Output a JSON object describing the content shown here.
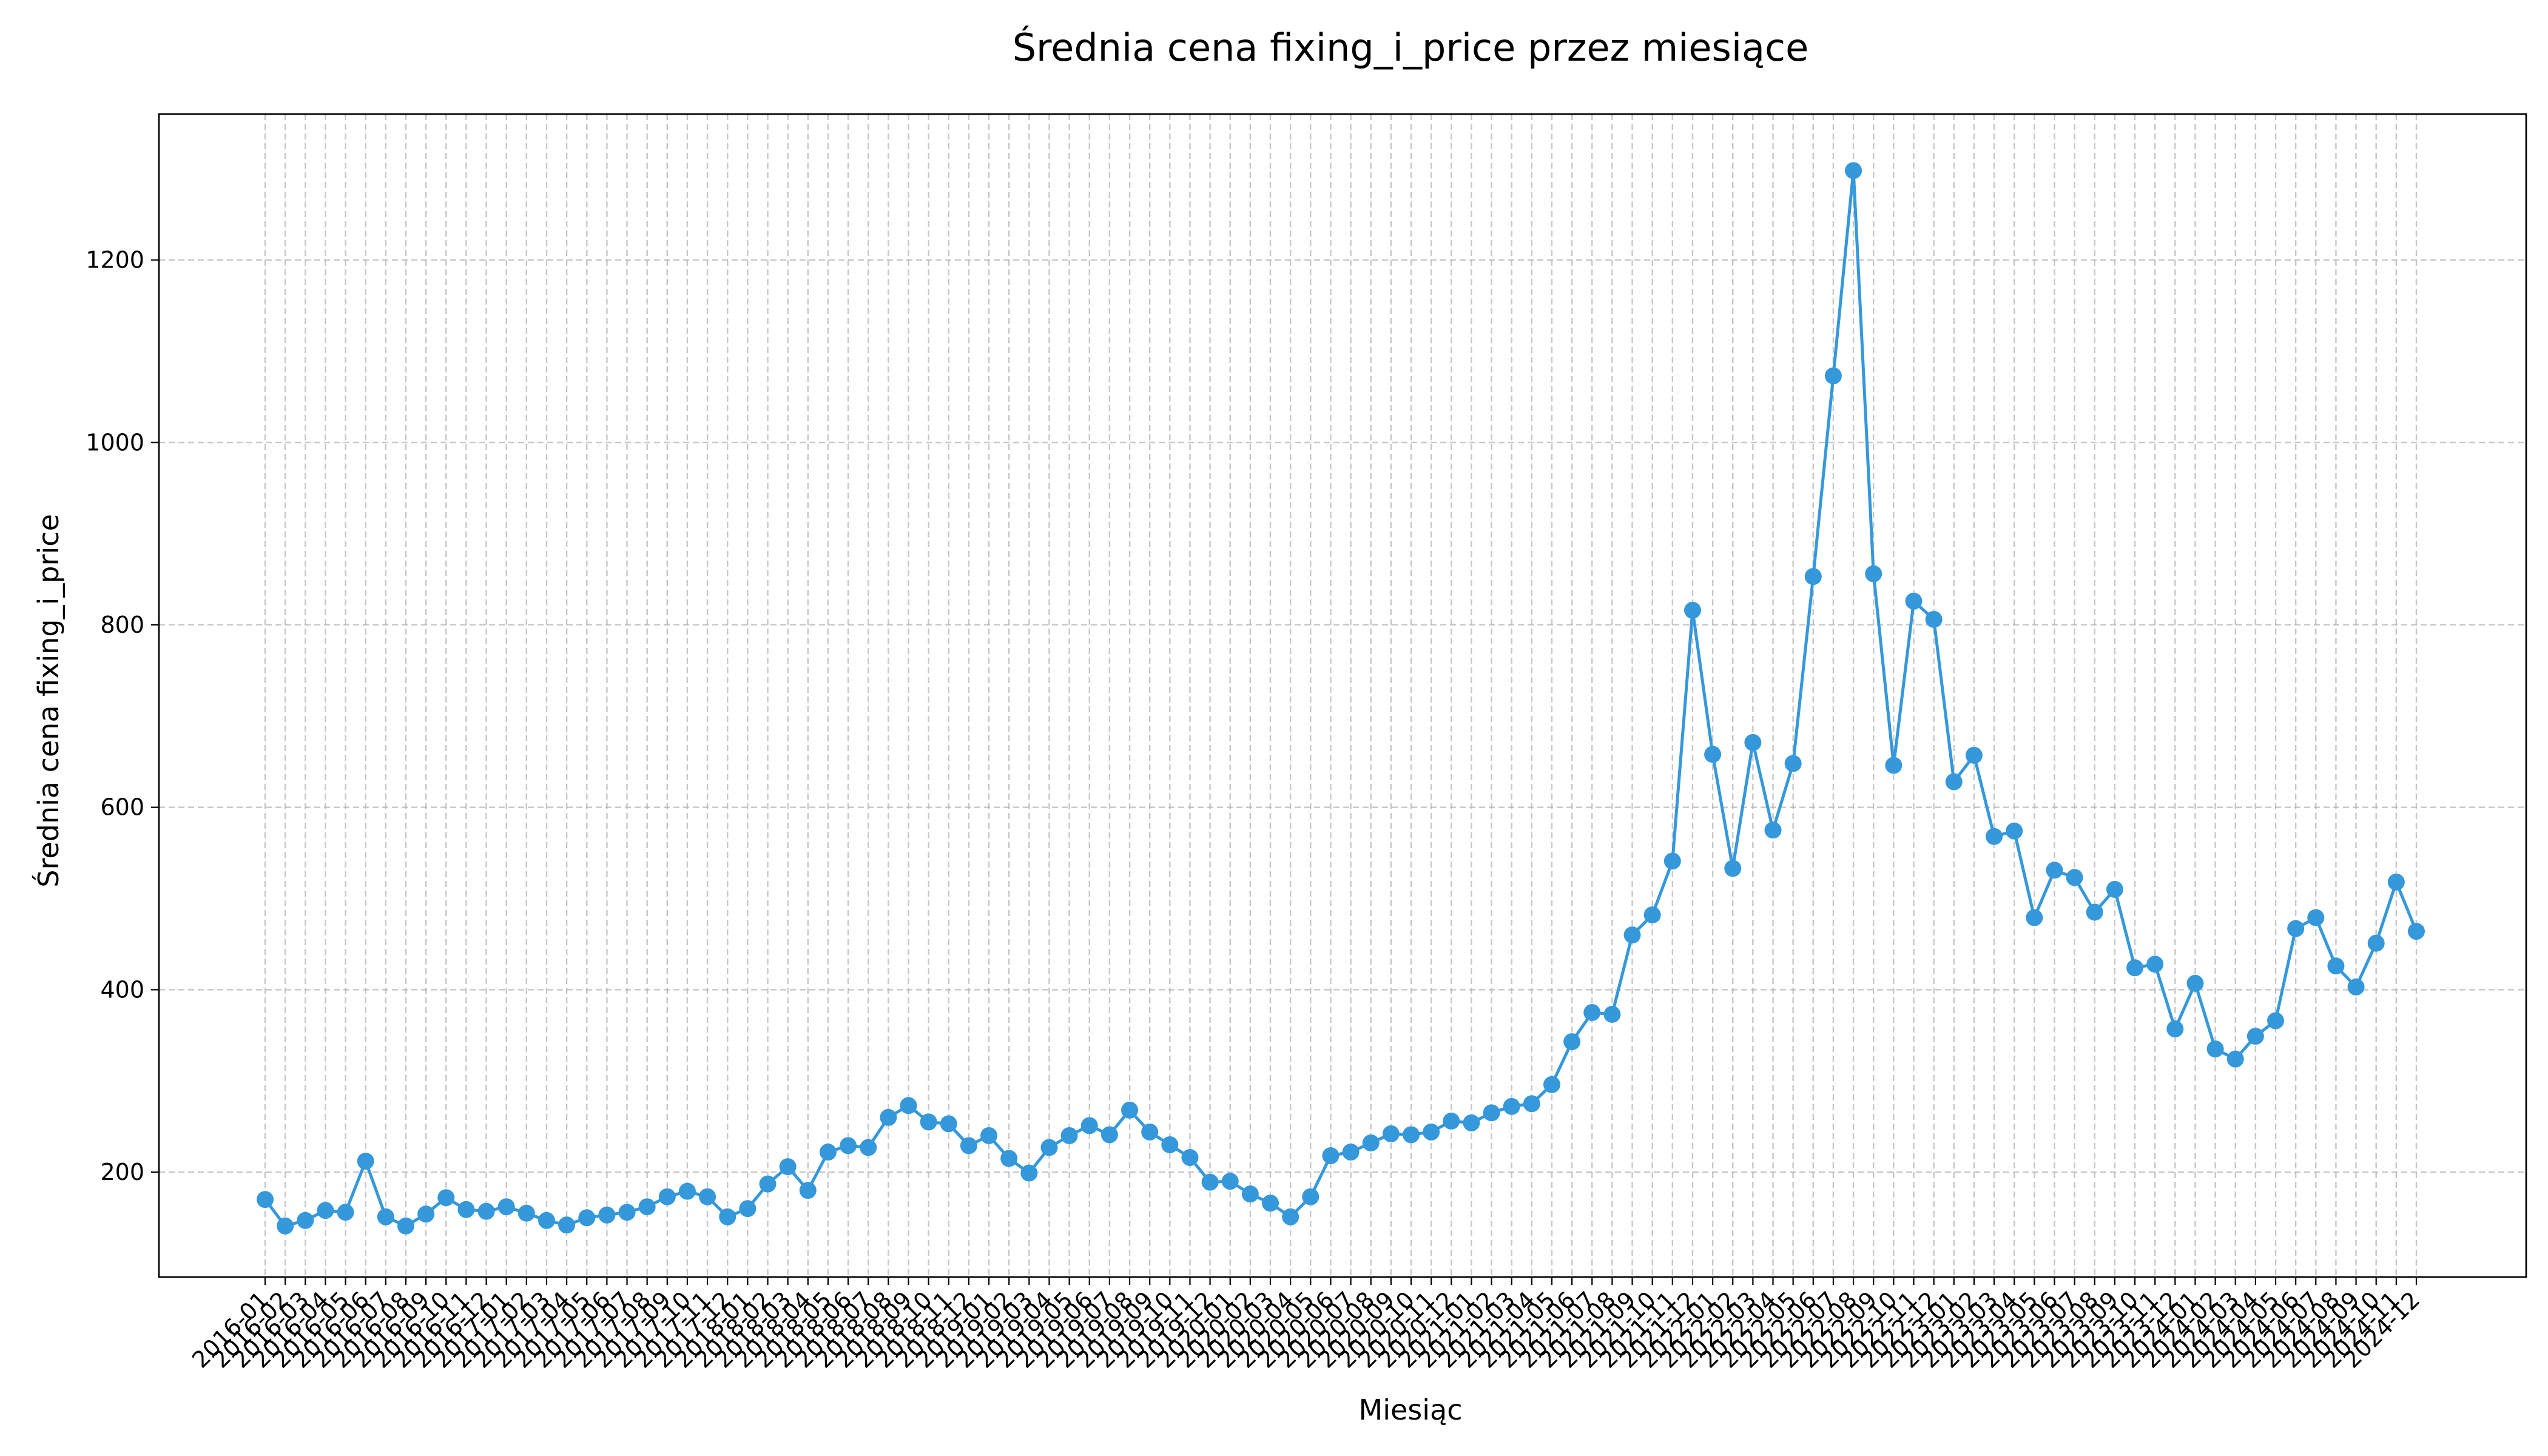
{
  "chart_data": {
    "type": "line",
    "title": "Średnia cena fixing_i_price przez miesiące",
    "xlabel": "Miesiąc",
    "ylabel": "Średnia cena fixing_i_price",
    "ylim": [
      85,
      1360
    ],
    "yticks": [
      200,
      400,
      600,
      800,
      1000,
      1200
    ],
    "grid": true,
    "legend": "none",
    "color": "#3498db",
    "x": [
      "2016-01",
      "2016-02",
      "2016-03",
      "2016-04",
      "2016-05",
      "2016-06",
      "2016-07",
      "2016-08",
      "2016-09",
      "2016-10",
      "2016-11",
      "2016-12",
      "2017-01",
      "2017-02",
      "2017-03",
      "2017-04",
      "2017-05",
      "2017-06",
      "2017-07",
      "2017-08",
      "2017-09",
      "2017-10",
      "2017-11",
      "2017-12",
      "2018-01",
      "2018-02",
      "2018-03",
      "2018-04",
      "2018-05",
      "2018-06",
      "2018-07",
      "2018-08",
      "2018-09",
      "2018-10",
      "2018-11",
      "2018-12",
      "2019-01",
      "2019-02",
      "2019-03",
      "2019-04",
      "2019-05",
      "2019-06",
      "2019-07",
      "2019-08",
      "2019-09",
      "2019-10",
      "2019-11",
      "2019-12",
      "2020-01",
      "2020-02",
      "2020-03",
      "2020-04",
      "2020-05",
      "2020-06",
      "2020-07",
      "2020-08",
      "2020-09",
      "2020-10",
      "2020-11",
      "2020-12",
      "2021-01",
      "2021-02",
      "2021-03",
      "2021-04",
      "2021-05",
      "2021-06",
      "2021-07",
      "2021-08",
      "2021-09",
      "2021-10",
      "2021-11",
      "2021-12",
      "2022-01",
      "2022-02",
      "2022-03",
      "2022-04",
      "2022-05",
      "2022-06",
      "2022-07",
      "2022-08",
      "2022-09",
      "2022-10",
      "2022-11",
      "2022-12",
      "2023-01",
      "2023-02",
      "2023-03",
      "2023-04",
      "2023-05",
      "2023-06",
      "2023-07",
      "2023-08",
      "2023-09",
      "2023-10",
      "2023-11",
      "2023-12",
      "2024-01",
      "2024-02",
      "2024-03",
      "2024-04",
      "2024-05",
      "2024-06",
      "2024-07",
      "2024-08",
      "2024-09",
      "2024-10",
      "2024-11",
      "2024-12"
    ],
    "y": [
      170,
      141,
      147,
      158,
      156,
      212,
      151,
      141,
      154,
      172,
      159,
      157,
      162,
      155,
      147,
      142,
      150,
      153,
      156,
      162,
      173,
      179,
      173,
      151,
      160,
      187,
      206,
      180,
      222,
      229,
      227,
      260,
      273,
      255,
      253,
      229,
      240,
      215,
      199,
      227,
      240,
      251,
      241,
      268,
      244,
      230,
      216,
      189,
      190,
      176,
      166,
      151,
      173,
      218,
      222,
      232,
      242,
      241,
      244,
      256,
      254,
      265,
      272,
      275,
      296,
      343,
      375,
      373,
      460,
      482,
      541,
      816,
      658,
      533,
      671,
      575,
      648,
      853,
      1073,
      1298,
      856,
      646,
      826,
      806,
      628,
      657,
      568,
      574,
      479,
      531,
      523,
      485,
      510,
      424,
      428,
      357,
      407,
      335,
      324,
      349,
      366,
      467,
      479,
      426,
      403,
      451,
      518,
      464
    ]
  }
}
